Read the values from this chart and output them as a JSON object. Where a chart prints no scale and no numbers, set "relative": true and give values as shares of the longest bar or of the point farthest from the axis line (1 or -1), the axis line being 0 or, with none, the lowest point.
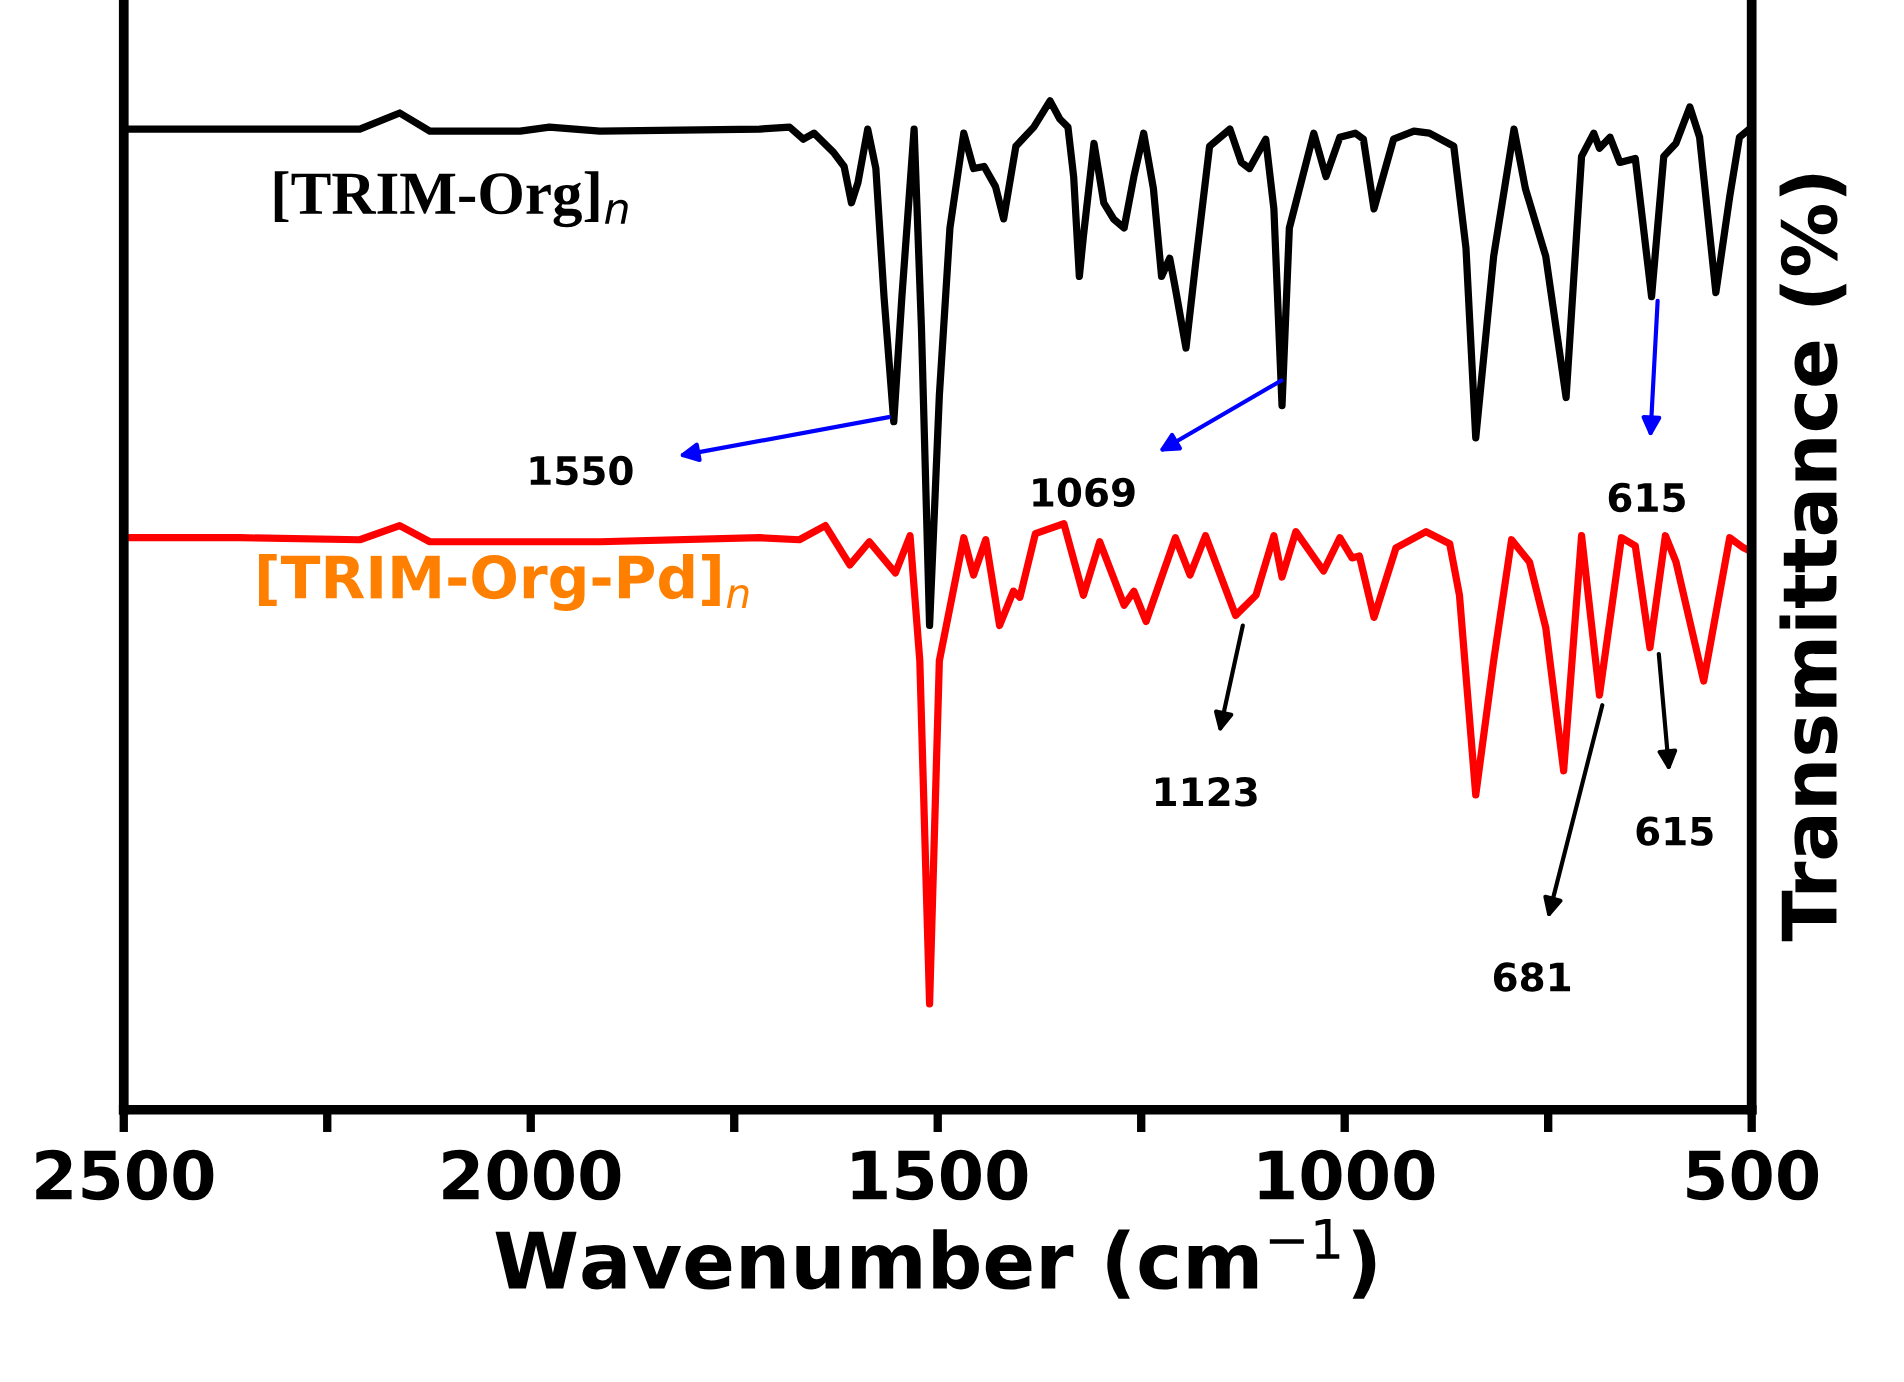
{
  "chart_data": {
    "type": "line",
    "relative": true,
    "xlabel": "Wavenumber (cm$^{−1}$)",
    "ylabel": "Transmittance (%)",
    "xlim": [
      2500,
      500
    ],
    "xticks": [
      2500,
      {
        "value": 2250,
        "label": null
      },
      2000,
      {
        "value": 1750,
        "label": null
      },
      1500,
      {
        "value": 1250,
        "label": null
      },
      1000,
      {
        "value": 750,
        "label": null
      },
      500
    ],
    "tick_labels": "x",
    "grid": false,
    "legend": false,
    "marker": "none",
    "line_style": "solid",
    "x": [
      2500,
      2357,
      2210,
      2161,
      2124,
      2013,
      1977,
      1915,
      1719,
      1682,
      1665,
      1652,
      1628,
      1615,
      1606,
      1598,
      1586,
      1576,
      1566,
      1554,
      1544,
      1529,
      1520,
      1510,
      1498,
      1485,
      1468,
      1456,
      1443,
      1429,
      1419,
      1404,
      1382,
      1362,
      1350,
      1340,
      1333,
      1326,
      1321,
      1308,
      1296,
      1284,
      1271,
      1259,
      1247,
      1235,
      1225,
      1215,
      1208,
      1195,
      1183,
      1166,
      1141,
      1127,
      1117,
      1097,
      1087,
      1077,
      1068,
      1038,
      1023,
      1006,
      987,
      977,
      964,
      940,
      915,
      896,
      866,
      851,
      839,
      817,
      792,
      778,
      753,
      728,
      709,
      694,
      687,
      674,
      662,
      643,
      623,
      608,
      593,
      576,
      564,
      544,
      527,
      515,
      500
    ],
    "series": [
      {
        "name": "[TRIM-Org]$_{n}$",
        "color": "#000000",
        "values": [
          0.972,
          0.972,
          0.972,
          0.988,
          0.97,
          0.97,
          0.974,
          0.97,
          0.972,
          0.974,
          0.962,
          0.968,
          0.949,
          0.935,
          0.899,
          0.919,
          0.972,
          0.933,
          0.806,
          0.682,
          0.806,
          0.972,
          0.775,
          0.48,
          0.708,
          0.874,
          0.968,
          0.933,
          0.935,
          0.915,
          0.883,
          0.955,
          0.974,
          1.0,
          0.982,
          0.974,
          0.925,
          0.826,
          0.866,
          0.958,
          0.899,
          0.883,
          0.874,
          0.925,
          0.968,
          0.913,
          0.826,
          0.844,
          0.814,
          0.755,
          0.84,
          0.955,
          0.972,
          0.939,
          0.933,
          0.962,
          0.893,
          0.698,
          0.874,
          0.968,
          0.925,
          0.964,
          0.968,
          0.962,
          0.893,
          0.962,
          0.97,
          0.968,
          0.955,
          0.854,
          0.666,
          0.846,
          0.972,
          0.913,
          0.846,
          0.706,
          0.945,
          0.968,
          0.953,
          0.964,
          0.939,
          0.943,
          0.806,
          0.945,
          0.958,
          0.994,
          0.964,
          0.81,
          0.905,
          0.964,
          0.974
        ]
      },
      {
        "name": "[TRIM-Org-Pd]$_{n}$",
        "color": "#ff0000",
        "x": [
          2500,
          2357,
          2210,
          2161,
          2124,
          1915,
          1719,
          1670,
          1638,
          1608,
          1584,
          1552,
          1534,
          1522,
          1510,
          1498,
          1468,
          1456,
          1441,
          1424,
          1407,
          1399,
          1380,
          1345,
          1321,
          1301,
          1271,
          1259,
          1244,
          1208,
          1190,
          1171,
          1134,
          1109,
          1087,
          1077,
          1060,
          1026,
          1006,
          991,
          982,
          964,
          937,
          900,
          871,
          859,
          839,
          817,
          795,
          773,
          753,
          731,
          709,
          687,
          660,
          643,
          625,
          606,
          593,
          559,
          527,
          510,
          500
        ],
        "values": [
          0.567,
          0.567,
          0.565,
          0.579,
          0.563,
          0.563,
          0.567,
          0.565,
          0.579,
          0.54,
          0.563,
          0.532,
          0.569,
          0.445,
          0.105,
          0.445,
          0.567,
          0.53,
          0.565,
          0.48,
          0.514,
          0.508,
          0.571,
          0.581,
          0.51,
          0.563,
          0.5,
          0.514,
          0.484,
          0.567,
          0.53,
          0.569,
          0.49,
          0.51,
          0.569,
          0.528,
          0.573,
          0.534,
          0.567,
          0.547,
          0.549,
          0.488,
          0.557,
          0.573,
          0.561,
          0.51,
          0.312,
          0.445,
          0.565,
          0.543,
          0.478,
          0.336,
          0.569,
          0.411,
          0.567,
          0.559,
          0.458,
          0.569,
          0.543,
          0.425,
          0.567,
          0.557,
          0.553
        ]
      }
    ],
    "annotations": [
      {
        "text": "1550",
        "x": 1550,
        "y": 0.688
      },
      {
        "text": "1069",
        "x": 1069,
        "y": 0.727
      },
      {
        "text": "615",
        "x": 615,
        "y": 0.81
      },
      {
        "text": "1123",
        "x": 1123,
        "y": 0.488
      },
      {
        "text": "681",
        "x": 681,
        "y": 0.409
      },
      {
        "text": "615",
        "x": 615,
        "y": 0.46
      }
    ]
  }
}
